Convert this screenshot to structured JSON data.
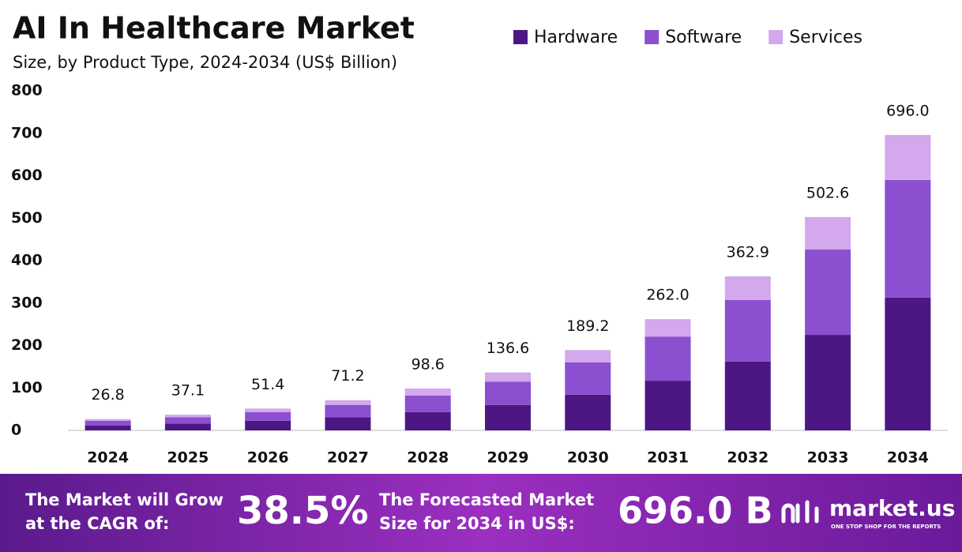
{
  "chart_data": {
    "type": "stacked_bar",
    "title": "AI In Healthcare Market",
    "subtitle": "Size, by Product Type, 2024-2034 (US$ Billion)",
    "categories": [
      "2024",
      "2025",
      "2026",
      "2027",
      "2028",
      "2029",
      "2030",
      "2031",
      "2032",
      "2033",
      "2034"
    ],
    "series": [
      {
        "name": "Hardware",
        "color": "#4d1783",
        "values": [
          11.8,
          16.3,
          22.5,
          31,
          43,
          60,
          84,
          117,
          162,
          225,
          313
        ]
      },
      {
        "name": "Software",
        "color": "#8c4fcf",
        "values": [
          10.7,
          14.8,
          20.5,
          29,
          39,
          55,
          76,
          104,
          145,
          201,
          277
        ]
      },
      {
        "name": "Services",
        "color": "#d3a8ec",
        "values": [
          4.3,
          6.0,
          8.4,
          11.2,
          16.6,
          21.6,
          29.2,
          41,
          55.9,
          76.6,
          106
        ]
      }
    ],
    "totals": [
      26.8,
      37.1,
      51.4,
      71.2,
      98.6,
      136.6,
      189.2,
      262.0,
      362.9,
      502.6,
      696.0
    ],
    "value_labels": [
      "26.8",
      "37.1",
      "51.4",
      "71.2",
      "98.6",
      "136.6",
      "189.2",
      "262.0",
      "362.9",
      "502.6",
      "696.0"
    ],
    "ylim": [
      0,
      800
    ],
    "yticks": [
      0,
      100,
      200,
      300,
      400,
      500,
      600,
      700,
      800
    ],
    "grid": false,
    "legend": "top-right"
  },
  "footer": {
    "cagr_text": [
      "The Market will Grow",
      "at the CAGR of:"
    ],
    "cagr_value": "38.5%",
    "forecast_text": [
      "The Forecasted Market",
      "Size for 2034 in US$:"
    ],
    "forecast_value": "696.0 B",
    "brand": "market.us",
    "tagline": "ONE STOP SHOP FOR THE REPORTS"
  }
}
